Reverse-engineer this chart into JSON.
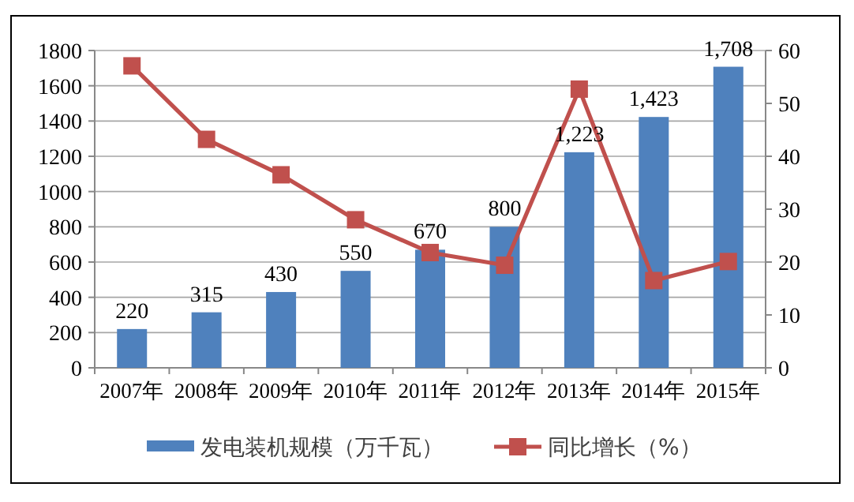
{
  "chart_data": {
    "type": "bar",
    "categories": [
      "2007年",
      "2008年",
      "2009年",
      "2010年",
      "2011年",
      "2012年",
      "2013年",
      "2014年",
      "2015年"
    ],
    "series": [
      {
        "name": "发电装机规模（万千瓦）",
        "color": "#4f81bd",
        "values": [
          220,
          315,
          430,
          550,
          670,
          800,
          1223,
          1423,
          1708
        ],
        "value_labels": [
          "220",
          "315",
          "430",
          "550",
          "670",
          "800",
          "1,223",
          "1,423",
          "1,708"
        ]
      },
      {
        "name": "同比增长（%）",
        "type": "line",
        "axis": "y2",
        "color": "#c0504d",
        "marker": "square",
        "values": [
          57.1,
          43.2,
          36.5,
          28.0,
          21.8,
          19.4,
          52.7,
          16.5,
          20.1
        ]
      }
    ],
    "ylim": [
      0,
      1800
    ],
    "yticks": [
      0,
      200,
      400,
      600,
      800,
      1000,
      1200,
      1400,
      1600,
      1800
    ],
    "y2lim": [
      0,
      60
    ],
    "y2ticks": [
      0,
      10,
      20,
      30,
      40,
      50,
      60
    ],
    "grid": "y",
    "legend": "bottom"
  }
}
